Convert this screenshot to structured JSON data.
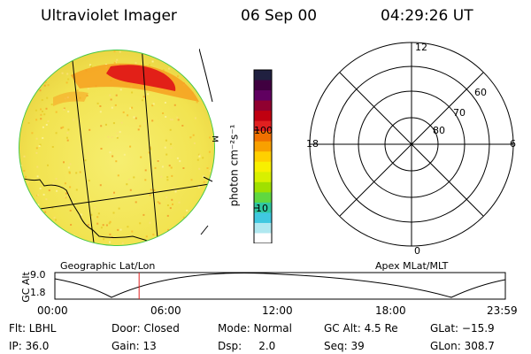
{
  "header": {
    "instrument": "Ultraviolet Imager",
    "date": "06 Sep 00",
    "time": "04:29:26 UT"
  },
  "colorbar": {
    "unit_label": "photon cm⁻²s⁻¹",
    "ticks": [
      "100",
      "10"
    ],
    "colors": [
      "#202040",
      "#400040",
      "#600060",
      "#900030",
      "#c00010",
      "#e02020",
      "#f07000",
      "#f8a000",
      "#ffd000",
      "#f8f000",
      "#d8f000",
      "#a0e000",
      "#60d840",
      "#30c8a0",
      "#40c8e0",
      "#b0e8f0",
      "#ffffff"
    ]
  },
  "uv_image": {
    "colors": {
      "background": "#f2e858",
      "aurora": "#e22018",
      "halo": "#f7a020",
      "edge": "#48c848"
    }
  },
  "polar": {
    "mlt_labels": {
      "top": "12",
      "bottom": "0",
      "left": "18",
      "right": "6"
    },
    "lat_labels": [
      "60",
      "70",
      "80"
    ]
  },
  "timeline": {
    "left_caption": "Geographic Lat/Lon",
    "right_caption": "Apex MLat/MLT",
    "axis_title": "GC Alt",
    "y_ticks": [
      "9.0",
      "1.8"
    ],
    "x_ticks": [
      "00:00",
      "06:00",
      "12:00",
      "18:00",
      "23:59"
    ],
    "current_marker_color": "#e02020",
    "current_time_fraction": 0.187
  },
  "info": {
    "row1": [
      "Flt: LBHL",
      "Door: Closed",
      "Mode: Normal",
      "GC Alt: 4.5 Re",
      "GLat: −15.9"
    ],
    "row2": [
      "IP: 36.0",
      "Gain: 13",
      "Dsp:     2.0",
      "Seq: 39",
      "GLon: 308.7"
    ]
  }
}
